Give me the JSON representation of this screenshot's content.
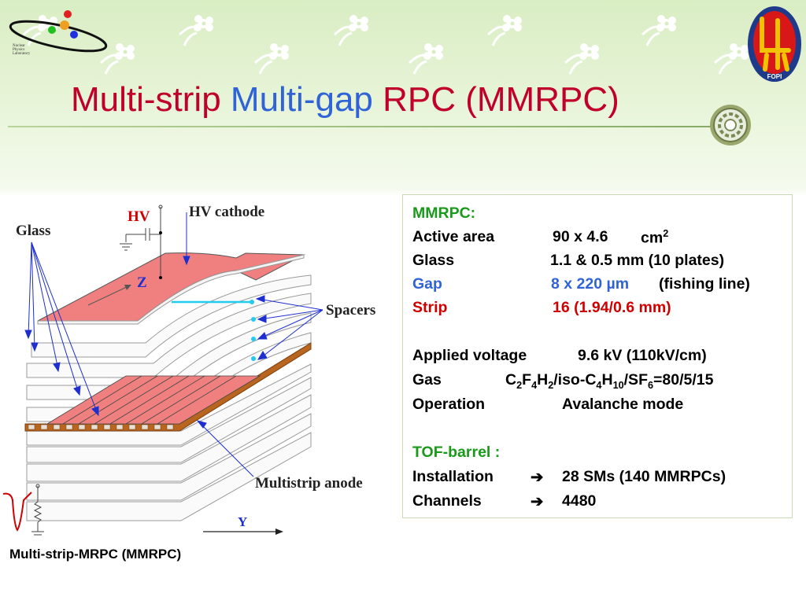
{
  "header": {
    "logo_left_text": [
      "Nuclear",
      "Physics",
      "Laboratory"
    ],
    "logo_right_text": "FOPI"
  },
  "title": {
    "part1": "Multi-strip",
    "part2": "Multi-gap",
    "part3": "RPC (MMRPC)"
  },
  "diagram": {
    "labels": {
      "hv": "HV",
      "hv_cathode": "HV cathode",
      "glass": "Glass",
      "z": "Z",
      "spacers": "Spacers",
      "multistrip_anode": "Multistrip anode",
      "y": "Y"
    },
    "caption": "Multi-strip-MRPC (MMRPC)"
  },
  "info": {
    "heading": "MMRPC:",
    "active_area_label": "Active area",
    "active_area_value": "90 x 4.6",
    "active_area_unit": "cm",
    "active_area_sup": "2",
    "glass_label": "Glass",
    "glass_value": "1.1 & 0.5 mm (10 plates)",
    "gap_label": "Gap",
    "gap_value": "8 x 220 µm",
    "gap_extra": "(fishing line)",
    "strip_label": "Strip",
    "strip_value": "16 (1.94/0.6 mm)",
    "voltage_label": "Applied voltage",
    "voltage_value": "9.6 kV (110kV/cm)",
    "gas_label": "Gas",
    "gas_f1": "C",
    "gas_s1": "2",
    "gas_f2": "F",
    "gas_s2": "4",
    "gas_f3": "H",
    "gas_s3": "2",
    "gas_f4": "/iso-C",
    "gas_s4": "4",
    "gas_f5": "H",
    "gas_s5": "10",
    "gas_f6": "/SF",
    "gas_s6": "6",
    "gas_f7": "=80/5/15",
    "operation_label": "Operation",
    "operation_value": "Avalanche mode",
    "tof_heading": "TOF-barrel :",
    "installation_label": "Installation",
    "installation_value": "28 SMs (140 MMRPCs)",
    "channels_label": "Channels",
    "channels_value": "4480",
    "arrow_icon": "➔"
  },
  "colors": {
    "title_red": "#c0002a",
    "title_blue": "#2f63d6",
    "text_green": "#1a9a1a",
    "text_blue": "#2f63d6",
    "text_red": "#d00000",
    "glass_pink": "#f08080",
    "anode_brown": "#b8651f"
  }
}
